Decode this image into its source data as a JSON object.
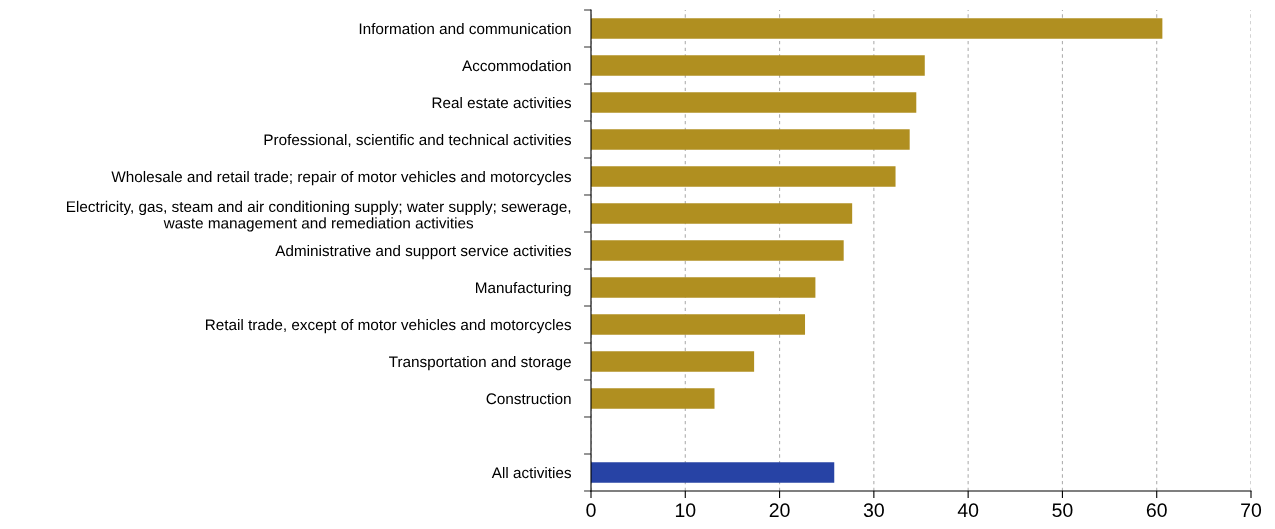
{
  "chart_data": {
    "type": "bar",
    "orientation": "horizontal",
    "categories": [
      "Information and communication",
      "Accommodation",
      "Real estate activities",
      "Professional, scientific and technical activities",
      "Wholesale and retail trade; repair of motor vehicles and motorcycles",
      "Electricity, gas, steam and air conditioning supply; water supply; sewerage,\nwaste management and remediation activities",
      "Administrative and support service activities",
      "Manufacturing",
      "Retail trade, except of motor vehicles and motorcycles",
      "Transportation and storage",
      "Construction",
      null,
      "All activities"
    ],
    "values": [
      60.6,
      35.4,
      34.5,
      33.8,
      32.3,
      27.7,
      26.8,
      23.8,
      22.7,
      17.3,
      13.1,
      null,
      25.8
    ],
    "colors": [
      "#b08f20",
      "#b08f20",
      "#b08f20",
      "#b08f20",
      "#b08f20",
      "#b08f20",
      "#b08f20",
      "#b08f20",
      "#b08f20",
      "#b08f20",
      "#b08f20",
      "#b08f20",
      "#2743a5"
    ],
    "xlim": [
      0,
      70
    ],
    "xticks": [
      0,
      10,
      20,
      30,
      40,
      50,
      60,
      70
    ],
    "grid": "x"
  }
}
